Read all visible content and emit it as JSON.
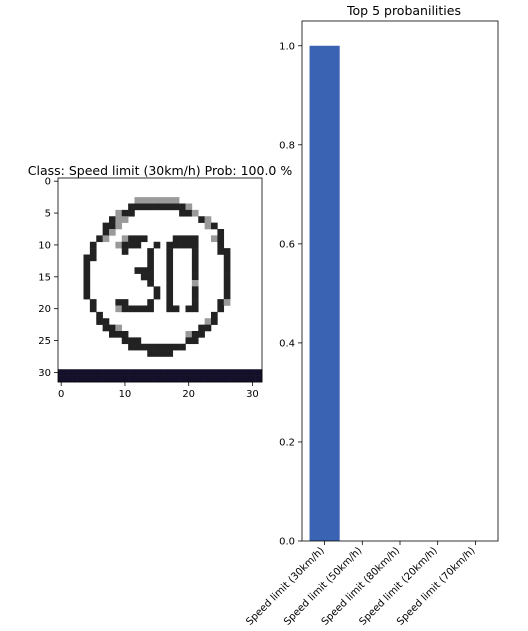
{
  "chart_data": [
    {
      "type": "heatmap",
      "title": "Class: Speed limit (30km/h) Prob: 100.0 %",
      "xlim": [
        -0.5,
        31.5
      ],
      "ylim": [
        31.5,
        -0.5
      ],
      "xticks": [
        0,
        10,
        20,
        30
      ],
      "yticks": [
        0,
        5,
        10,
        15,
        20,
        25,
        30
      ],
      "colormap": "gray",
      "grid": false,
      "image_rows": [
        "22222222222222222222222222222222",
        "22222222222222222222222222222222",
        "22222222222222222222222222222222",
        "22222222222211111112222222222222",
        "22222222222000000000122222222222",
        "22222222210022222220012222222222",
        "22222222011222222222220122222222",
        "22222220012222222222222102222222",
        "22222220122222222222222220222222",
        "22222201221000222200002210222222",
        "22222022210002202000002220222222",
        "22222022220222022022202220022222",
        "22220022222222022022202222022222",
        "22220222222222022022202222022222",
        "22220222222200022022202222022222",
        "22220222222220022022202222022222",
        "22220222222222022022212222022222",
        "22220222222222202022202222022222",
        "22220222222222202022202222022222",
        "22222022200222022022202220122222",
        "22222022210000022002002220222222",
        "22222202222222222222222202222222",
        "22222200222222222222222102222222",
        "22222220012222222222220022222222",
        "22222222000222222222100222222222",
        "22222222220002222222002222222222",
        "22222222222000000000222222222222",
        "22222222222222000022222222222222",
        "22222222222222222222222222222222",
        "22222222222222222222222222222222",
        "33333333333333333333333333333333",
        "33333333333333333333333333333333"
      ],
      "pixel_levels": {
        "0": "#222222",
        "1": "#9a9a9a",
        "2": "#ffffff",
        "3": "#14102a"
      }
    },
    {
      "type": "bar",
      "title": "Top 5 probanilities",
      "categories": [
        "Speed limit (30km/h)",
        "Speed limit (50km/h)",
        "Speed limit (80km/h)",
        "Speed limit (20km/h)",
        "Speed limit (70km/h)"
      ],
      "values": [
        1.0,
        0.0,
        0.0,
        0.0,
        0.0
      ],
      "ylim": [
        0,
        1.05
      ],
      "yticks": [
        0.0,
        0.2,
        0.4,
        0.6,
        0.8,
        1.0
      ],
      "color": "#3b63b4",
      "grid": false,
      "tick_label_rotation": 45
    }
  ]
}
